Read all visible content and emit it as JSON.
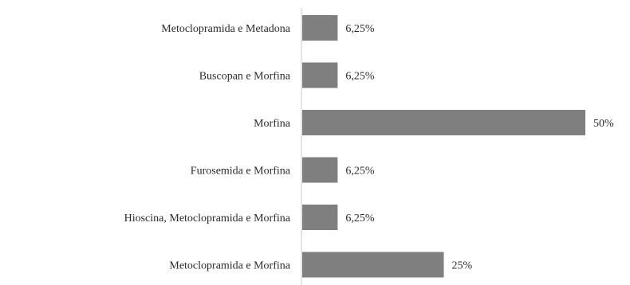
{
  "chart_data": {
    "type": "bar",
    "orientation": "horizontal",
    "categories": [
      "Metoclopramida e Metadona",
      "Buscopan e Morfina",
      "Morfina",
      "Furosemida e Morfina",
      "Hioscina, Metoclopramida e Morfina",
      "Metoclopramida e Morfina"
    ],
    "values": [
      6.25,
      6.25,
      50,
      6.25,
      6.25,
      25
    ],
    "data_labels": [
      "6,25%",
      "6,25%",
      "50%",
      "6,25%",
      "6,25%",
      "25%"
    ],
    "xlim": [
      0,
      50
    ],
    "grid": false,
    "legend": "none",
    "bar_color": "#7f7f7f",
    "axis_color": "#c8c8c8",
    "text_color": "#2a2a2a"
  }
}
